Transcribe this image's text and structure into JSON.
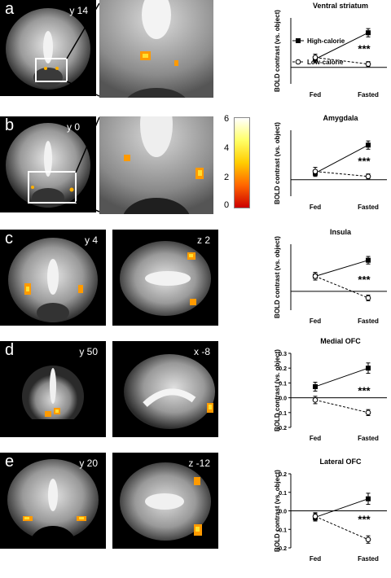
{
  "panels": [
    {
      "letter": "a",
      "views": [
        {
          "coord": "y 14"
        }
      ]
    },
    {
      "letter": "b",
      "views": [
        {
          "coord": "y 0"
        }
      ]
    },
    {
      "letter": "c",
      "views": [
        {
          "coord": "y 4"
        },
        {
          "coord": "z 2"
        }
      ]
    },
    {
      "letter": "d",
      "views": [
        {
          "coord": "y 50"
        },
        {
          "coord": "x -8"
        }
      ]
    },
    {
      "letter": "e",
      "views": [
        {
          "coord": "y 20"
        },
        {
          "coord": "z -12"
        }
      ]
    }
  ],
  "colorbar": {
    "ticks": [
      "6",
      "4",
      "2",
      "0"
    ],
    "colors": [
      "#ffffff",
      "#ffff66",
      "#ffcc00",
      "#ff6600",
      "#cc0000"
    ]
  },
  "legend": {
    "high": "High-calorie",
    "low": "Low-calorie"
  },
  "chart_data": [
    {
      "type": "line",
      "title": "Ventral striatum",
      "ylabel": "BOLD contrast (vs. object)",
      "categories": [
        "Fed",
        "Fasted"
      ],
      "ylim": [
        -0.1,
        0.3
      ],
      "yticks": [],
      "significance": "***",
      "series": [
        {
          "name": "High-calorie",
          "values": [
            0.05,
            0.21
          ],
          "err": [
            0.02,
            0.025
          ]
        },
        {
          "name": "Low-calorie",
          "values": [
            0.06,
            0.02
          ],
          "err": [
            0.02,
            0.015
          ]
        }
      ]
    },
    {
      "type": "line",
      "title": "Amygdala",
      "ylabel": "BOLD contrast (vs. object)",
      "categories": [
        "Fed",
        "Fasted"
      ],
      "ylim": [
        -0.1,
        0.3
      ],
      "yticks": [],
      "significance": "***",
      "series": [
        {
          "name": "High-calorie",
          "values": [
            0.04,
            0.21
          ],
          "err": [
            0.02,
            0.025
          ]
        },
        {
          "name": "Low-calorie",
          "values": [
            0.05,
            0.02
          ],
          "err": [
            0.025,
            0.015
          ]
        }
      ]
    },
    {
      "type": "line",
      "title": "Insula",
      "ylabel": "BOLD contrast (vs. object)",
      "categories": [
        "Fed",
        "Fasted"
      ],
      "ylim": [
        -0.1,
        0.25
      ],
      "yticks": [],
      "significance": "***",
      "series": [
        {
          "name": "High-calorie",
          "values": [
            0.08,
            0.165
          ],
          "err": [
            0.02,
            0.02
          ]
        },
        {
          "name": "Low-calorie",
          "values": [
            0.08,
            -0.035
          ],
          "err": [
            0.02,
            0.015
          ]
        }
      ]
    },
    {
      "type": "line",
      "title": "Medial OFC",
      "ylabel": "BOLD contrast (vs. object)",
      "categories": [
        "Fed",
        "Fasted"
      ],
      "ylim": [
        -0.2,
        0.3
      ],
      "yticks": [
        "0.3",
        "0.2",
        "0.1",
        "0.0",
        "-0.1",
        "-0.2"
      ],
      "significance": "***",
      "series": [
        {
          "name": "High-calorie",
          "values": [
            0.075,
            0.2
          ],
          "err": [
            0.03,
            0.035
          ]
        },
        {
          "name": "Low-calorie",
          "values": [
            -0.015,
            -0.1
          ],
          "err": [
            0.025,
            0.02
          ]
        }
      ]
    },
    {
      "type": "line",
      "title": "Lateral OFC",
      "ylabel": "BOLD contrast (vs. object)",
      "categories": [
        "Fed",
        "Fasted"
      ],
      "ylim": [
        -0.2,
        0.2
      ],
      "yticks": [
        "0.2",
        "0.1",
        "0.0",
        "-0.1",
        "-0.2"
      ],
      "significance": "***",
      "series": [
        {
          "name": "High-calorie",
          "values": [
            -0.035,
            0.065
          ],
          "err": [
            0.02,
            0.03
          ]
        },
        {
          "name": "Low-calorie",
          "values": [
            -0.03,
            -0.155
          ],
          "err": [
            0.02,
            0.02
          ]
        }
      ]
    }
  ]
}
